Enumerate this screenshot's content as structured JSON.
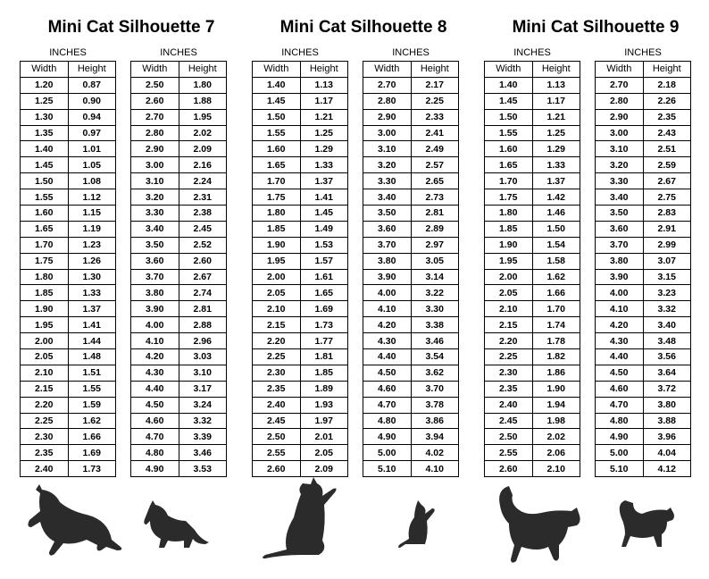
{
  "sections": [
    {
      "title": "Mini Cat Silhouette 7",
      "tables": [
        {
          "caption": "INCHES",
          "headers": [
            "Width",
            "Height"
          ],
          "rows": [
            [
              "1.20",
              "0.87"
            ],
            [
              "1.25",
              "0.90"
            ],
            [
              "1.30",
              "0.94"
            ],
            [
              "1.35",
              "0.97"
            ],
            [
              "1.40",
              "1.01"
            ],
            [
              "1.45",
              "1.05"
            ],
            [
              "1.50",
              "1.08"
            ],
            [
              "1.55",
              "1.12"
            ],
            [
              "1.60",
              "1.15"
            ],
            [
              "1.65",
              "1.19"
            ],
            [
              "1.70",
              "1.23"
            ],
            [
              "1.75",
              "1.26"
            ],
            [
              "1.80",
              "1.30"
            ],
            [
              "1.85",
              "1.33"
            ],
            [
              "1.90",
              "1.37"
            ],
            [
              "1.95",
              "1.41"
            ],
            [
              "2.00",
              "1.44"
            ],
            [
              "2.05",
              "1.48"
            ],
            [
              "2.10",
              "1.51"
            ],
            [
              "2.15",
              "1.55"
            ],
            [
              "2.20",
              "1.59"
            ],
            [
              "2.25",
              "1.62"
            ],
            [
              "2.30",
              "1.66"
            ],
            [
              "2.35",
              "1.69"
            ],
            [
              "2.40",
              "1.73"
            ]
          ]
        },
        {
          "caption": "INCHES",
          "headers": [
            "Width",
            "Height"
          ],
          "rows": [
            [
              "2.50",
              "1.80"
            ],
            [
              "2.60",
              "1.88"
            ],
            [
              "2.70",
              "1.95"
            ],
            [
              "2.80",
              "2.02"
            ],
            [
              "2.90",
              "2.09"
            ],
            [
              "3.00",
              "2.16"
            ],
            [
              "3.10",
              "2.24"
            ],
            [
              "3.20",
              "2.31"
            ],
            [
              "3.30",
              "2.38"
            ],
            [
              "3.40",
              "2.45"
            ],
            [
              "3.50",
              "2.52"
            ],
            [
              "3.60",
              "2.60"
            ],
            [
              "3.70",
              "2.67"
            ],
            [
              "3.80",
              "2.74"
            ],
            [
              "3.90",
              "2.81"
            ],
            [
              "4.00",
              "2.88"
            ],
            [
              "4.10",
              "2.96"
            ],
            [
              "4.20",
              "3.03"
            ],
            [
              "4.30",
              "3.10"
            ],
            [
              "4.40",
              "3.17"
            ],
            [
              "4.50",
              "3.24"
            ],
            [
              "4.60",
              "3.32"
            ],
            [
              "4.70",
              "3.39"
            ],
            [
              "4.80",
              "3.46"
            ],
            [
              "4.90",
              "3.53"
            ]
          ]
        }
      ]
    },
    {
      "title": "Mini Cat Silhouette 8",
      "tables": [
        {
          "caption": "INCHES",
          "headers": [
            "Width",
            "Height"
          ],
          "rows": [
            [
              "1.40",
              "1.13"
            ],
            [
              "1.45",
              "1.17"
            ],
            [
              "1.50",
              "1.21"
            ],
            [
              "1.55",
              "1.25"
            ],
            [
              "1.60",
              "1.29"
            ],
            [
              "1.65",
              "1.33"
            ],
            [
              "1.70",
              "1.37"
            ],
            [
              "1.75",
              "1.41"
            ],
            [
              "1.80",
              "1.45"
            ],
            [
              "1.85",
              "1.49"
            ],
            [
              "1.90",
              "1.53"
            ],
            [
              "1.95",
              "1.57"
            ],
            [
              "2.00",
              "1.61"
            ],
            [
              "2.05",
              "1.65"
            ],
            [
              "2.10",
              "1.69"
            ],
            [
              "2.15",
              "1.73"
            ],
            [
              "2.20",
              "1.77"
            ],
            [
              "2.25",
              "1.81"
            ],
            [
              "2.30",
              "1.85"
            ],
            [
              "2.35",
              "1.89"
            ],
            [
              "2.40",
              "1.93"
            ],
            [
              "2.45",
              "1.97"
            ],
            [
              "2.50",
              "2.01"
            ],
            [
              "2.55",
              "2.05"
            ],
            [
              "2.60",
              "2.09"
            ]
          ]
        },
        {
          "caption": "INCHES",
          "headers": [
            "Width",
            "Height"
          ],
          "rows": [
            [
              "2.70",
              "2.17"
            ],
            [
              "2.80",
              "2.25"
            ],
            [
              "2.90",
              "2.33"
            ],
            [
              "3.00",
              "2.41"
            ],
            [
              "3.10",
              "2.49"
            ],
            [
              "3.20",
              "2.57"
            ],
            [
              "3.30",
              "2.65"
            ],
            [
              "3.40",
              "2.73"
            ],
            [
              "3.50",
              "2.81"
            ],
            [
              "3.60",
              "2.89"
            ],
            [
              "3.70",
              "2.97"
            ],
            [
              "3.80",
              "3.05"
            ],
            [
              "3.90",
              "3.14"
            ],
            [
              "4.00",
              "3.22"
            ],
            [
              "4.10",
              "3.30"
            ],
            [
              "4.20",
              "3.38"
            ],
            [
              "4.30",
              "3.46"
            ],
            [
              "4.40",
              "3.54"
            ],
            [
              "4.50",
              "3.62"
            ],
            [
              "4.60",
              "3.70"
            ],
            [
              "4.70",
              "3.78"
            ],
            [
              "4.80",
              "3.86"
            ],
            [
              "4.90",
              "3.94"
            ],
            [
              "5.00",
              "4.02"
            ],
            [
              "5.10",
              "4.10"
            ]
          ]
        }
      ]
    },
    {
      "title": "Mini Cat Silhouette 9",
      "tables": [
        {
          "caption": "INCHES",
          "headers": [
            "Width",
            "Height"
          ],
          "rows": [
            [
              "1.40",
              "1.13"
            ],
            [
              "1.45",
              "1.17"
            ],
            [
              "1.50",
              "1.21"
            ],
            [
              "1.55",
              "1.25"
            ],
            [
              "1.60",
              "1.29"
            ],
            [
              "1.65",
              "1.33"
            ],
            [
              "1.70",
              "1.37"
            ],
            [
              "1.75",
              "1.42"
            ],
            [
              "1.80",
              "1.46"
            ],
            [
              "1.85",
              "1.50"
            ],
            [
              "1.90",
              "1.54"
            ],
            [
              "1.95",
              "1.58"
            ],
            [
              "2.00",
              "1.62"
            ],
            [
              "2.05",
              "1.66"
            ],
            [
              "2.10",
              "1.70"
            ],
            [
              "2.15",
              "1.74"
            ],
            [
              "2.20",
              "1.78"
            ],
            [
              "2.25",
              "1.82"
            ],
            [
              "2.30",
              "1.86"
            ],
            [
              "2.35",
              "1.90"
            ],
            [
              "2.40",
              "1.94"
            ],
            [
              "2.45",
              "1.98"
            ],
            [
              "2.50",
              "2.02"
            ],
            [
              "2.55",
              "2.06"
            ],
            [
              "2.60",
              "2.10"
            ]
          ]
        },
        {
          "caption": "INCHES",
          "headers": [
            "Width",
            "Height"
          ],
          "rows": [
            [
              "2.70",
              "2.18"
            ],
            [
              "2.80",
              "2.26"
            ],
            [
              "2.90",
              "2.35"
            ],
            [
              "3.00",
              "2.43"
            ],
            [
              "3.10",
              "2.51"
            ],
            [
              "3.20",
              "2.59"
            ],
            [
              "3.30",
              "2.67"
            ],
            [
              "3.40",
              "2.75"
            ],
            [
              "3.50",
              "2.83"
            ],
            [
              "3.60",
              "2.91"
            ],
            [
              "3.70",
              "2.99"
            ],
            [
              "3.80",
              "3.07"
            ],
            [
              "3.90",
              "3.15"
            ],
            [
              "4.00",
              "3.23"
            ],
            [
              "4.10",
              "3.32"
            ],
            [
              "4.20",
              "3.40"
            ],
            [
              "4.30",
              "3.48"
            ],
            [
              "4.40",
              "3.56"
            ],
            [
              "4.50",
              "3.64"
            ],
            [
              "4.60",
              "3.72"
            ],
            [
              "4.70",
              "3.80"
            ],
            [
              "4.80",
              "3.88"
            ],
            [
              "4.90",
              "3.96"
            ],
            [
              "5.00",
              "4.04"
            ],
            [
              "5.10",
              "4.12"
            ]
          ]
        }
      ]
    }
  ]
}
